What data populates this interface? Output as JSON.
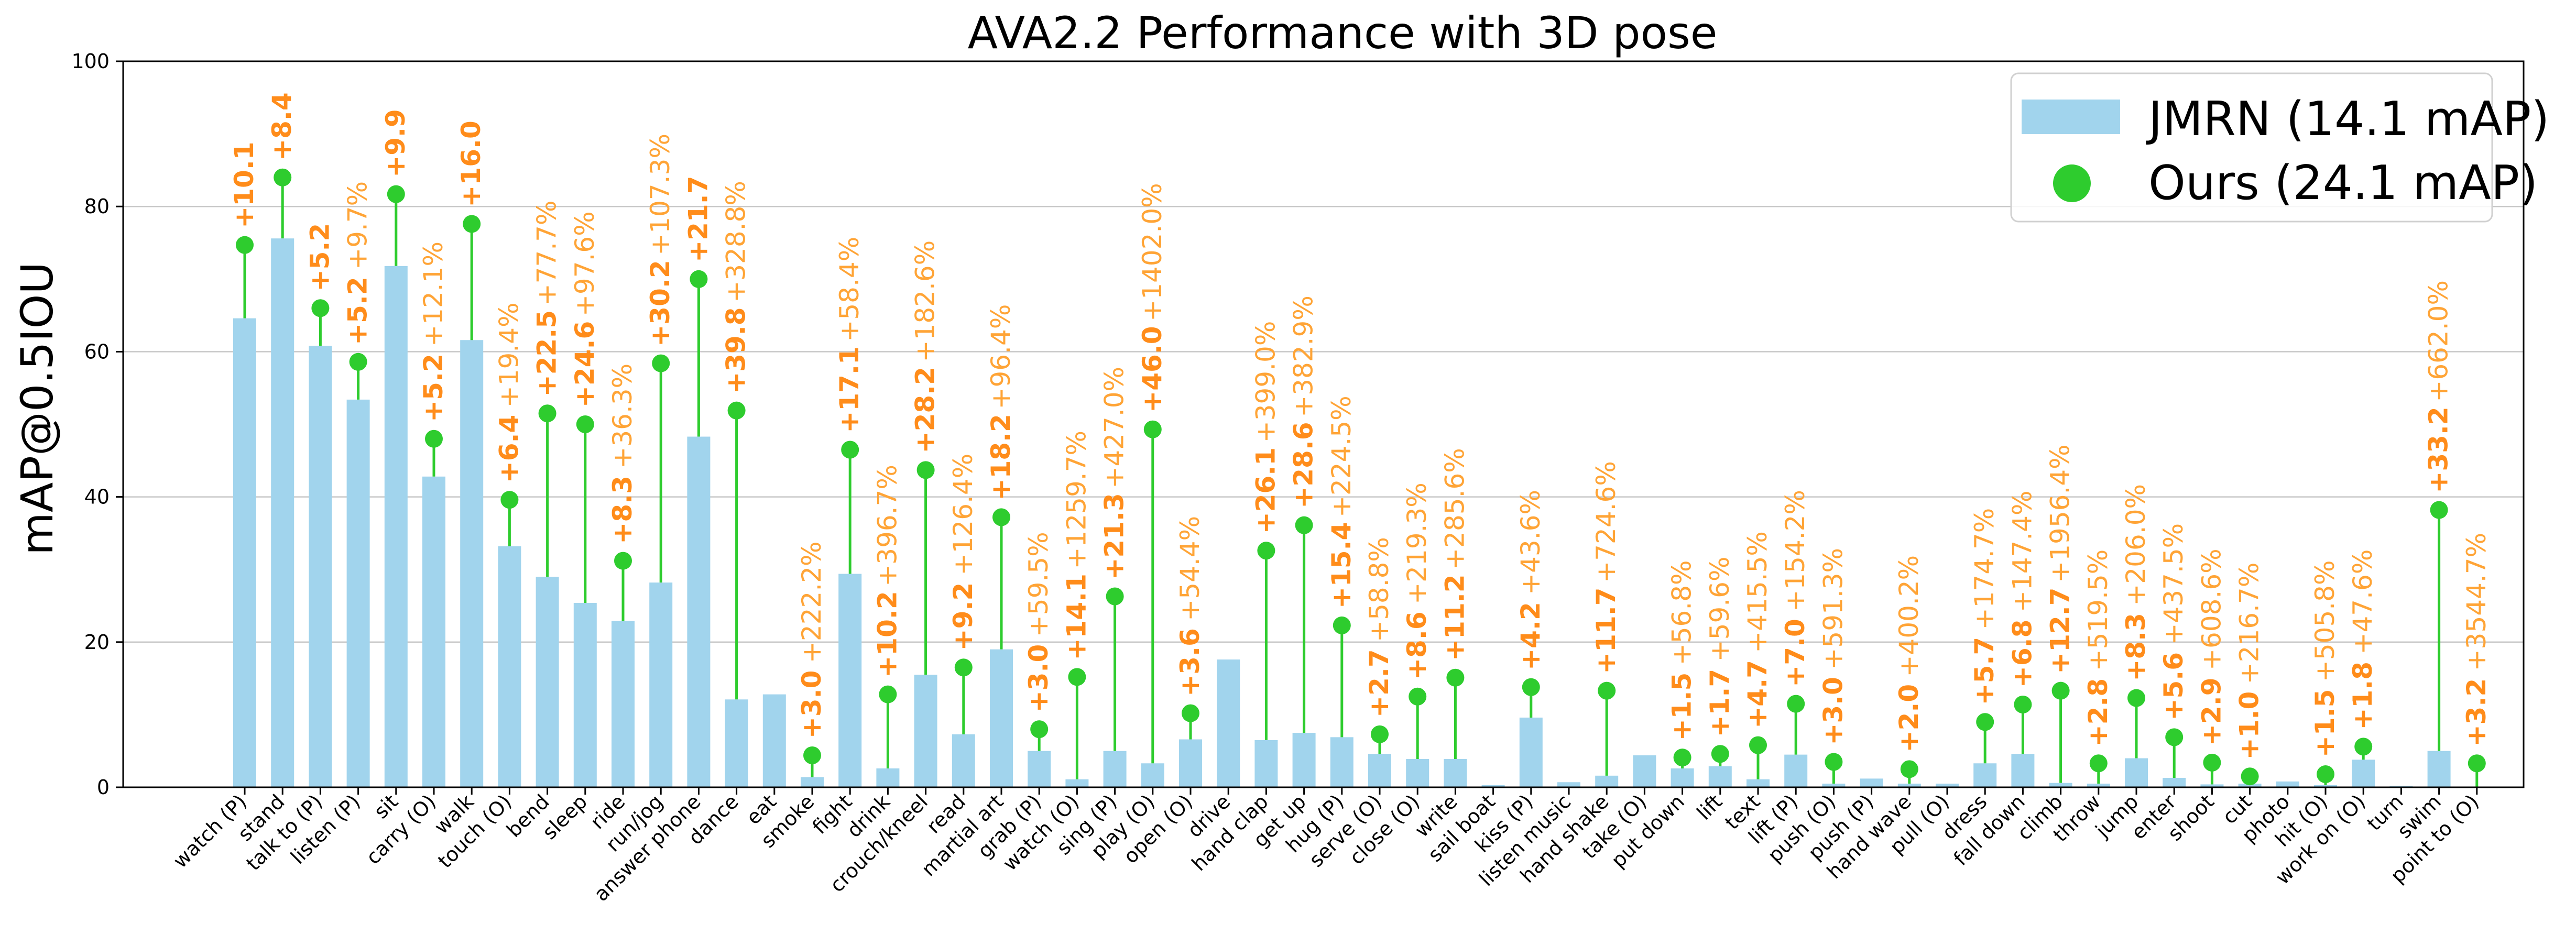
{
  "chart_data": {
    "type": "bar",
    "title": "AVA2.2 Performance with 3D pose",
    "xlabel": "",
    "ylabel": "mAP@0.5IOU",
    "ylim": [
      0,
      100
    ],
    "yticks": [
      "0",
      "20",
      "40",
      "60",
      "80",
      "100"
    ],
    "grid": "y",
    "legend_position": "top-right",
    "colors": {
      "bar": "#A1D4ED",
      "dot": "#2ECC2E",
      "stem": "#2ECC2E",
      "abs_label": "#FF8C1A",
      "rel_label": "#FFA436",
      "grid": "#C8C8C8"
    },
    "categories": [
      "watch (P)",
      "stand",
      "talk to (P)",
      "listen (P)",
      "sit",
      "carry (O)",
      "walk",
      "touch (O)",
      "bend",
      "sleep",
      "ride",
      "run/jog",
      "answer phone",
      "dance",
      "eat",
      "smoke",
      "fight",
      "drink",
      "crouch/kneel",
      "read",
      "martial art",
      "grab (P)",
      "watch (O)",
      "sing (P)",
      "play (O)",
      "open (O)",
      "drive",
      "hand clap",
      "get up",
      "hug (P)",
      "serve (O)",
      "close (O)",
      "write",
      "sail boat",
      "kiss (P)",
      "listen music",
      "hand shake",
      "take (O)",
      "put down",
      "lift",
      "text",
      "lift (P)",
      "push (O)",
      "push (P)",
      "hand wave",
      "pull (O)",
      "dress",
      "fall down",
      "climb",
      "throw",
      "jump",
      "enter",
      "shoot",
      "cut",
      "photo",
      "hit (O)",
      "work on (O)",
      "turn",
      "swim",
      "point to (O)"
    ],
    "series": [
      {
        "name": "JMRN (14.1 mAP)",
        "kind": "bar",
        "values": [
          64.6,
          75.6,
          60.8,
          53.4,
          71.8,
          42.8,
          61.6,
          33.2,
          29.0,
          25.4,
          22.9,
          28.2,
          48.3,
          12.1,
          12.8,
          1.4,
          29.4,
          2.6,
          15.5,
          7.3,
          19.0,
          5.0,
          1.1,
          5.0,
          3.3,
          6.6,
          17.6,
          6.5,
          7.5,
          6.9,
          4.6,
          3.9,
          3.9,
          0.3,
          9.6,
          0.7,
          1.6,
          4.4,
          2.6,
          2.9,
          1.1,
          4.5,
          0.5,
          1.2,
          0.5,
          0.5,
          3.3,
          4.6,
          0.6,
          0.5,
          4.0,
          1.3,
          0.4,
          0.5,
          0.8,
          0.3,
          3.8,
          0.2,
          5.0,
          0.1
        ]
      },
      {
        "name": "Ours (24.1 mAP)",
        "kind": "dot",
        "values": [
          74.7,
          84.0,
          66.0,
          58.6,
          81.7,
          48.0,
          77.6,
          39.6,
          51.5,
          50.0,
          31.2,
          58.4,
          70.0,
          51.9,
          null,
          4.4,
          46.5,
          12.8,
          43.7,
          16.5,
          37.2,
          8.0,
          15.2,
          26.3,
          49.3,
          10.2,
          null,
          32.6,
          36.1,
          22.3,
          7.3,
          12.5,
          15.1,
          null,
          13.8,
          null,
          13.3,
          null,
          4.1,
          4.6,
          5.8,
          11.5,
          3.5,
          null,
          2.5,
          null,
          9.0,
          11.4,
          13.3,
          3.3,
          12.3,
          6.9,
          3.4,
          1.5,
          null,
          1.8,
          5.6,
          null,
          38.2,
          3.3
        ]
      }
    ],
    "improvement_labels": [
      {
        "category": "watch (P)",
        "abs": "+10.1",
        "rel": ""
      },
      {
        "category": "stand",
        "abs": "+8.4",
        "rel": ""
      },
      {
        "category": "talk to (P)",
        "abs": "+5.2",
        "rel": ""
      },
      {
        "category": "listen (P)",
        "abs": "+5.2",
        "rel": "+9.7%"
      },
      {
        "category": "sit",
        "abs": "+9.9",
        "rel": ""
      },
      {
        "category": "carry (O)",
        "abs": "+5.2",
        "rel": "+12.1%"
      },
      {
        "category": "walk",
        "abs": "+16.0",
        "rel": ""
      },
      {
        "category": "touch (O)",
        "abs": "+6.4",
        "rel": "+19.4%"
      },
      {
        "category": "bend",
        "abs": "+22.5",
        "rel": "+77.7%"
      },
      {
        "category": "sleep",
        "abs": "+24.6",
        "rel": "+97.6%"
      },
      {
        "category": "ride",
        "abs": "+8.3",
        "rel": "+36.3%"
      },
      {
        "category": "run/jog",
        "abs": "+30.2",
        "rel": "+107.3%"
      },
      {
        "category": "answer phone",
        "abs": "+21.7",
        "rel": ""
      },
      {
        "category": "dance",
        "abs": "+39.8",
        "rel": "+328.8%"
      },
      {
        "category": "smoke",
        "abs": "+3.0",
        "rel": "+222.2%"
      },
      {
        "category": "fight",
        "abs": "+17.1",
        "rel": "+58.4%"
      },
      {
        "category": "drink",
        "abs": "+10.2",
        "rel": "+396.7%"
      },
      {
        "category": "crouch/kneel",
        "abs": "+28.2",
        "rel": "+182.6%"
      },
      {
        "category": "read",
        "abs": "+9.2",
        "rel": "+126.4%"
      },
      {
        "category": "martial art",
        "abs": "+18.2",
        "rel": "+96.4%"
      },
      {
        "category": "grab (P)",
        "abs": "+3.0",
        "rel": "+59.5%"
      },
      {
        "category": "watch (O)",
        "abs": "+14.1",
        "rel": "+1259.7%"
      },
      {
        "category": "sing (P)",
        "abs": "+21.3",
        "rel": "+427.0%"
      },
      {
        "category": "play (O)",
        "abs": "+46.0",
        "rel": "+1402.0%"
      },
      {
        "category": "open (O)",
        "abs": "+3.6",
        "rel": "+54.4%"
      },
      {
        "category": "hand clap",
        "abs": "+26.1",
        "rel": "+399.0%"
      },
      {
        "category": "get up",
        "abs": "+28.6",
        "rel": "+382.9%"
      },
      {
        "category": "hug (P)",
        "abs": "+15.4",
        "rel": "+224.5%"
      },
      {
        "category": "serve (O)",
        "abs": "+2.7",
        "rel": "+58.8%"
      },
      {
        "category": "close (O)",
        "abs": "+8.6",
        "rel": "+219.3%"
      },
      {
        "category": "write",
        "abs": "+11.2",
        "rel": "+285.6%"
      },
      {
        "category": "kiss (P)",
        "abs": "+4.2",
        "rel": "+43.6%"
      },
      {
        "category": "hand shake",
        "abs": "+11.7",
        "rel": "+724.6%"
      },
      {
        "category": "put down",
        "abs": "+1.5",
        "rel": "+56.8%"
      },
      {
        "category": "lift",
        "abs": "+1.7",
        "rel": "+59.6%"
      },
      {
        "category": "text",
        "abs": "+4.7",
        "rel": "+415.5%"
      },
      {
        "category": "lift (P)",
        "abs": "+7.0",
        "rel": "+154.2%"
      },
      {
        "category": "push (O)",
        "abs": "+3.0",
        "rel": "+591.3%"
      },
      {
        "category": "hand wave",
        "abs": "+2.0",
        "rel": "+400.2%"
      },
      {
        "category": "dress",
        "abs": "+5.7",
        "rel": "+174.7%"
      },
      {
        "category": "fall down",
        "abs": "+6.8",
        "rel": "+147.4%"
      },
      {
        "category": "climb",
        "abs": "+12.7",
        "rel": "+1956.4%"
      },
      {
        "category": "throw",
        "abs": "+2.8",
        "rel": "+519.5%"
      },
      {
        "category": "jump",
        "abs": "+8.3",
        "rel": "+206.0%"
      },
      {
        "category": "enter",
        "abs": "+5.6",
        "rel": "+437.5%"
      },
      {
        "category": "shoot",
        "abs": "+2.9",
        "rel": "+608.6%"
      },
      {
        "category": "cut",
        "abs": "+1.0",
        "rel": "+216.7%"
      },
      {
        "category": "hit (O)",
        "abs": "+1.5",
        "rel": "+505.8%"
      },
      {
        "category": "work on (O)",
        "abs": "+1.8",
        "rel": "+47.6%"
      },
      {
        "category": "swim",
        "abs": "+33.2",
        "rel": "+662.0%"
      },
      {
        "category": "point to (O)",
        "abs": "+3.2",
        "rel": "+3544.7%"
      }
    ]
  }
}
